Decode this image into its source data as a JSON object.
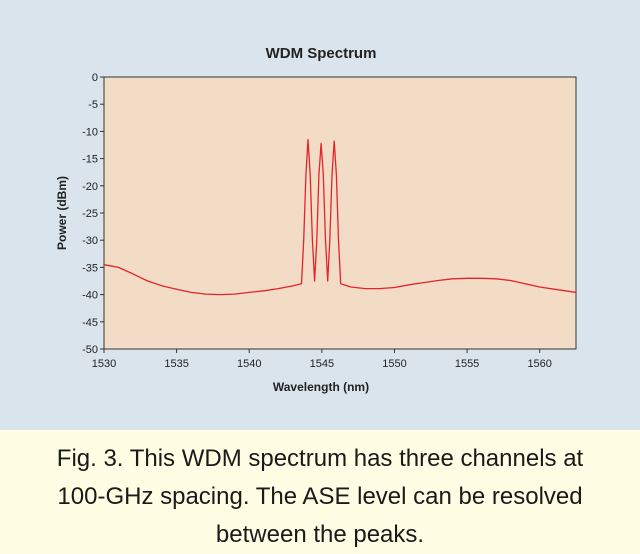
{
  "caption": {
    "line1": "Fig. 3. This WDM spectrum has three channels at",
    "line2": "100-GHz spacing. The ASE level can be resolved",
    "line3": "between the peaks."
  },
  "colors": {
    "plot_background": "#f3dcc6",
    "trace": "#e4232b",
    "figure_background": "#d9e4ec",
    "caption_background": "#fffde4"
  },
  "chart_data": {
    "type": "line",
    "title": "WDM Spectrum",
    "xlabel": "Wavelength (nm)",
    "ylabel": "Power (dBm)",
    "xlim": [
      1530,
      1562.5
    ],
    "ylim": [
      -50,
      0
    ],
    "xticks": [
      1530,
      1535,
      1540,
      1545,
      1550,
      1555,
      1560
    ],
    "yticks": [
      0,
      -5,
      -10,
      -15,
      -20,
      -25,
      -30,
      -35,
      -40,
      -45,
      -50
    ],
    "grid": false,
    "series": [
      {
        "points": [
          [
            1530.0,
            -34.5
          ],
          [
            1531.0,
            -35.0
          ],
          [
            1532.0,
            -36.2
          ],
          [
            1533.0,
            -37.5
          ],
          [
            1534.0,
            -38.4
          ],
          [
            1535.0,
            -39.0
          ],
          [
            1536.0,
            -39.6
          ],
          [
            1537.0,
            -39.9
          ],
          [
            1538.0,
            -40.0
          ],
          [
            1539.0,
            -39.9
          ],
          [
            1540.0,
            -39.6
          ],
          [
            1541.0,
            -39.3
          ],
          [
            1542.0,
            -38.9
          ],
          [
            1543.0,
            -38.4
          ],
          [
            1543.6,
            -38.0
          ],
          [
            1543.75,
            -30.0
          ],
          [
            1543.9,
            -18.0
          ],
          [
            1544.05,
            -11.5
          ],
          [
            1544.2,
            -18.0
          ],
          [
            1544.35,
            -30.0
          ],
          [
            1544.5,
            -37.5
          ],
          [
            1544.65,
            -30.0
          ],
          [
            1544.8,
            -18.0
          ],
          [
            1544.95,
            -12.2
          ],
          [
            1545.1,
            -18.0
          ],
          [
            1545.25,
            -30.0
          ],
          [
            1545.4,
            -37.5
          ],
          [
            1545.55,
            -30.0
          ],
          [
            1545.7,
            -18.0
          ],
          [
            1545.85,
            -11.8
          ],
          [
            1546.0,
            -18.0
          ],
          [
            1546.15,
            -30.0
          ],
          [
            1546.3,
            -38.0
          ],
          [
            1547.0,
            -38.6
          ],
          [
            1548.0,
            -38.9
          ],
          [
            1549.0,
            -38.9
          ],
          [
            1550.0,
            -38.7
          ],
          [
            1551.0,
            -38.2
          ],
          [
            1552.0,
            -37.8
          ],
          [
            1553.0,
            -37.4
          ],
          [
            1554.0,
            -37.1
          ],
          [
            1555.0,
            -37.0
          ],
          [
            1556.0,
            -37.0
          ],
          [
            1557.0,
            -37.1
          ],
          [
            1558.0,
            -37.4
          ],
          [
            1559.0,
            -38.0
          ],
          [
            1560.0,
            -38.6
          ],
          [
            1561.0,
            -39.0
          ],
          [
            1562.0,
            -39.4
          ],
          [
            1562.5,
            -39.6
          ]
        ]
      }
    ]
  }
}
